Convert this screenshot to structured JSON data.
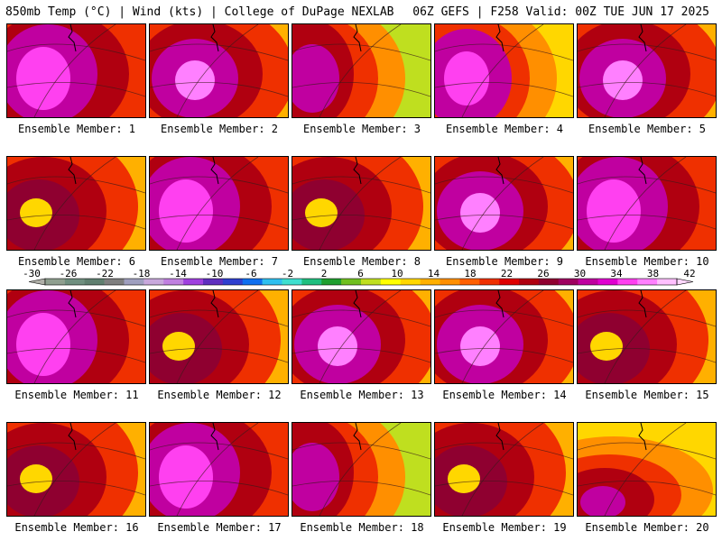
{
  "header": {
    "left": "850mb Temp (°C) | Wind (kts) | College of DuPage NEXLAB",
    "right": "06Z GEFS | F258 Valid: 00Z TUE JUN 17 2025"
  },
  "legend": {
    "labels": [
      "-30",
      "-26",
      "-22",
      "-18",
      "-14",
      "-10",
      "-6",
      "-2",
      "2",
      "6",
      "10",
      "14",
      "18",
      "22",
      "26",
      "30",
      "34",
      "38",
      "42"
    ],
    "colors": [
      "#8f9f8f",
      "#6f8f7f",
      "#5f7f6f",
      "#7f7f7f",
      "#9f9fbf",
      "#c8a8dc",
      "#c080e0",
      "#9f40df",
      "#5f2fbf",
      "#2f3fcf",
      "#0f6fef",
      "#2fbfef",
      "#3fdfcf",
      "#1fbf7f",
      "#1f9f2f",
      "#6fbf1f",
      "#bfdf1f",
      "#ffff00",
      "#ffd700",
      "#ffb000",
      "#ff8f00",
      "#ff6000",
      "#ef3000",
      "#df0000",
      "#b00010",
      "#8f0030",
      "#9f0060",
      "#c000a0",
      "#e000d0",
      "#ff40f0",
      "#ff80ff",
      "#ffc0ff"
    ]
  },
  "panels": [
    {
      "caption": "Ensemble Member: 1",
      "variant": 0
    },
    {
      "caption": "Ensemble Member: 2",
      "variant": 1
    },
    {
      "caption": "Ensemble Member: 3",
      "variant": 2
    },
    {
      "caption": "Ensemble Member: 4",
      "variant": 3
    },
    {
      "caption": "Ensemble Member: 5",
      "variant": 1
    },
    {
      "caption": "Ensemble Member: 6",
      "variant": 4
    },
    {
      "caption": "Ensemble Member: 7",
      "variant": 0
    },
    {
      "caption": "Ensemble Member: 8",
      "variant": 4
    },
    {
      "caption": "Ensemble Member: 9",
      "variant": 1
    },
    {
      "caption": "Ensemble Member: 10",
      "variant": 0
    },
    {
      "caption": "Ensemble Member: 11",
      "variant": 0
    },
    {
      "caption": "Ensemble Member: 12",
      "variant": 4
    },
    {
      "caption": "Ensemble Member: 13",
      "variant": 1
    },
    {
      "caption": "Ensemble Member: 14",
      "variant": 1
    },
    {
      "caption": "Ensemble Member: 15",
      "variant": 4
    },
    {
      "caption": "Ensemble Member: 16",
      "variant": 4
    },
    {
      "caption": "Ensemble Member: 17",
      "variant": 0
    },
    {
      "caption": "Ensemble Member: 18",
      "variant": 2
    },
    {
      "caption": "Ensemble Member: 19",
      "variant": 4
    },
    {
      "caption": "Ensemble Member: 20",
      "variant": 5
    }
  ]
}
